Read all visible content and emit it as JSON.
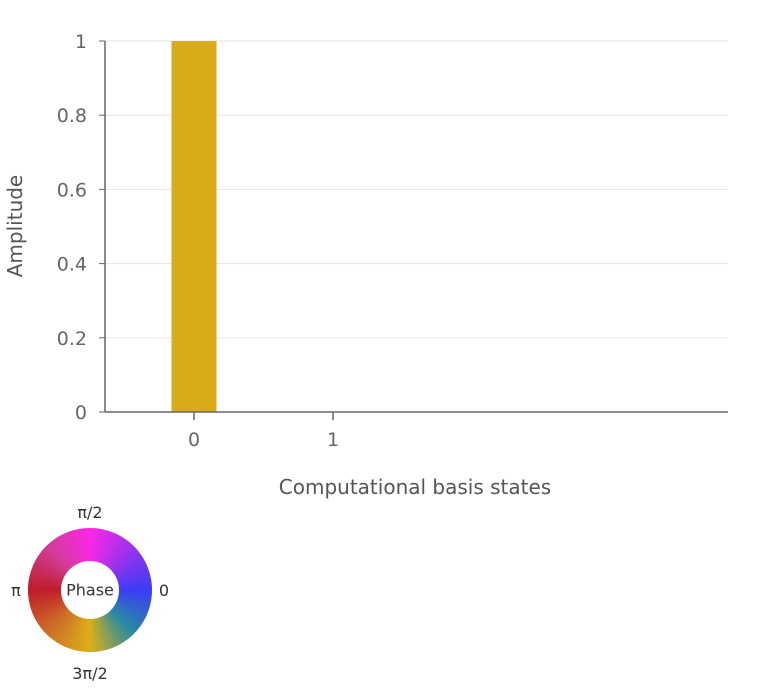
{
  "chart_data": {
    "type": "bar",
    "categories": [
      "0",
      "1"
    ],
    "values": [
      1,
      0
    ],
    "xlabel": "Computational basis states",
    "ylabel": "Amplitude",
    "ylim": [
      0,
      1
    ],
    "yticks": [
      "0",
      "0.2",
      "0.4",
      "0.6",
      "0.8",
      "1"
    ],
    "grid": true,
    "bar_color": "#D9AA1A",
    "grid_color": "#E6E6E6",
    "axis_color": "#666666"
  },
  "phase_legend": {
    "center_label": "Phase",
    "top": "π/2",
    "left": "π",
    "right": "0",
    "bottom": "3π/2"
  }
}
